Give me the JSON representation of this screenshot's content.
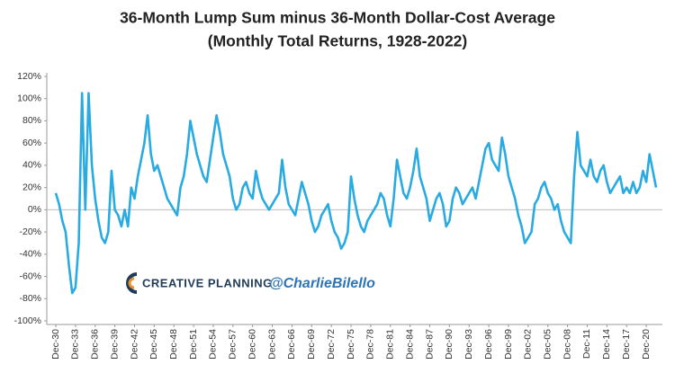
{
  "chart_data": {
    "type": "line",
    "title": [
      "36-Month Lump Sum minus 36-Month Dollar-Cost Average",
      "(Monthly Total Returns, 1928-2022)"
    ],
    "watermark": [
      "CREATIVE PLANNING",
      "@CharlieBilello"
    ],
    "color": "#29abe2",
    "zero_line": true,
    "ylim": [
      -100,
      120
    ],
    "yticks": [
      {
        "value": -100,
        "label": "-100%"
      },
      {
        "value": -80,
        "label": "-80%"
      },
      {
        "value": -60,
        "label": "-60%"
      },
      {
        "value": -40,
        "label": "-40%"
      },
      {
        "value": -20,
        "label": "-20%"
      },
      {
        "value": 0,
        "label": "0%"
      },
      {
        "value": 20,
        "label": "20%"
      },
      {
        "value": 40,
        "label": "40%"
      },
      {
        "value": 60,
        "label": "60%"
      },
      {
        "value": 80,
        "label": "80%"
      },
      {
        "value": 100,
        "label": "100%"
      },
      {
        "value": 120,
        "label": "120%"
      }
    ],
    "categories": [
      "Dec-30",
      null,
      null,
      null,
      null,
      null,
      "Dec-33",
      null,
      null,
      null,
      null,
      null,
      "Dec-36",
      null,
      null,
      null,
      null,
      null,
      "Dec-39",
      null,
      null,
      null,
      null,
      null,
      "Dec-42",
      null,
      null,
      null,
      null,
      null,
      "Dec-45",
      null,
      null,
      null,
      null,
      null,
      "Dec-48",
      null,
      null,
      null,
      null,
      null,
      "Dec-51",
      null,
      null,
      null,
      null,
      null,
      "Dec-54",
      null,
      null,
      null,
      null,
      null,
      "Dec-57",
      null,
      null,
      null,
      null,
      null,
      "Dec-60",
      null,
      null,
      null,
      null,
      null,
      "Dec-63",
      null,
      null,
      null,
      null,
      null,
      "Dec-66",
      null,
      null,
      null,
      null,
      null,
      "Dec-69",
      null,
      null,
      null,
      null,
      null,
      "Dec-72",
      null,
      null,
      null,
      null,
      null,
      "Dec-75",
      null,
      null,
      null,
      null,
      null,
      "Dec-78",
      null,
      null,
      null,
      null,
      null,
      "Dec-81",
      null,
      null,
      null,
      null,
      null,
      "Dec-84",
      null,
      null,
      null,
      null,
      null,
      "Dec-87",
      null,
      null,
      null,
      null,
      null,
      "Dec-90",
      null,
      null,
      null,
      null,
      null,
      "Dec-93",
      null,
      null,
      null,
      null,
      null,
      "Dec-96",
      null,
      null,
      null,
      null,
      null,
      "Dec-99",
      null,
      null,
      null,
      null,
      null,
      "Dec-02",
      null,
      null,
      null,
      null,
      null,
      "Dec-05",
      null,
      null,
      null,
      null,
      null,
      "Dec-08",
      null,
      null,
      null,
      null,
      null,
      "Dec-11",
      null,
      null,
      null,
      null,
      null,
      "Dec-14",
      null,
      null,
      null,
      null,
      null,
      "Dec-17",
      null,
      null,
      null,
      null,
      null,
      "Dec-20",
      null,
      null,
      null
    ],
    "values": [
      15,
      5,
      -10,
      -20,
      -50,
      -75,
      -70,
      -30,
      105,
      0,
      105,
      40,
      10,
      -10,
      -25,
      -30,
      -20,
      35,
      0,
      -5,
      -15,
      0,
      -15,
      20,
      10,
      30,
      45,
      60,
      85,
      50,
      35,
      40,
      30,
      20,
      10,
      5,
      0,
      -5,
      20,
      30,
      50,
      80,
      65,
      50,
      40,
      30,
      25,
      45,
      65,
      85,
      70,
      50,
      40,
      30,
      10,
      0,
      5,
      20,
      25,
      15,
      10,
      35,
      20,
      10,
      5,
      0,
      5,
      10,
      15,
      45,
      20,
      5,
      0,
      -5,
      10,
      25,
      15,
      5,
      -10,
      -20,
      -15,
      -5,
      0,
      5,
      -10,
      -20,
      -25,
      -35,
      -30,
      -20,
      30,
      10,
      -5,
      -15,
      -20,
      -10,
      -5,
      0,
      5,
      15,
      10,
      -5,
      -15,
      10,
      45,
      30,
      15,
      10,
      20,
      35,
      55,
      30,
      20,
      10,
      -10,
      0,
      10,
      15,
      5,
      -15,
      -10,
      10,
      20,
      15,
      5,
      10,
      15,
      20,
      10,
      25,
      40,
      55,
      60,
      45,
      40,
      35,
      65,
      50,
      30,
      20,
      10,
      -5,
      -15,
      -30,
      -25,
      -20,
      5,
      10,
      20,
      25,
      15,
      10,
      0,
      5,
      -10,
      -20,
      -25,
      -30,
      30,
      70,
      40,
      35,
      30,
      45,
      30,
      25,
      35,
      40,
      25,
      15,
      20,
      25,
      30,
      15,
      20,
      15,
      25,
      15,
      20,
      35,
      25,
      50,
      35,
      20
    ]
  }
}
